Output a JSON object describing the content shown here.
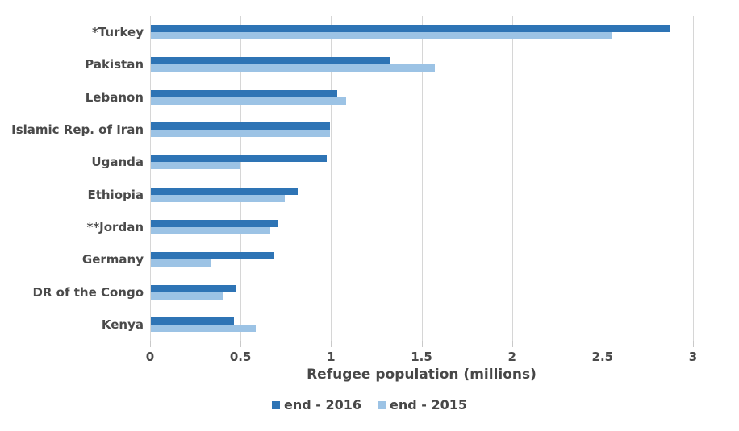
{
  "chart_data": {
    "type": "bar",
    "orientation": "horizontal",
    "title": "",
    "xlabel": "Refugee population (millions)",
    "ylabel": "",
    "xlim": [
      0,
      3
    ],
    "xticks": [
      0,
      0.5,
      1,
      1.5,
      2,
      2.5,
      3
    ],
    "xtick_labels": [
      "0",
      "0.5",
      "1",
      "1.5",
      "2",
      "2.5",
      "3"
    ],
    "grid": "vertical",
    "legend_position": "bottom-center",
    "categories": [
      "*Turkey",
      "Pakistan",
      "Lebanon",
      "Islamic Rep. of Iran",
      "Uganda",
      "Ethiopia",
      "**Jordan",
      "Germany",
      "DR of the Congo",
      "Kenya"
    ],
    "series": [
      {
        "name": "end - 2016",
        "color": "#2E74B5",
        "values": [
          2.87,
          1.32,
          1.03,
          0.99,
          0.97,
          0.81,
          0.7,
          0.68,
          0.47,
          0.46
        ]
      },
      {
        "name": "end - 2015",
        "color": "#9CC3E5",
        "values": [
          2.55,
          1.57,
          1.08,
          0.99,
          0.49,
          0.74,
          0.66,
          0.33,
          0.4,
          0.58
        ]
      }
    ],
    "colors": {
      "gridline": "#D6D6D6",
      "axis_tick": "#C9C9C9",
      "text": "#4A4A4A",
      "background": "#FFFFFF"
    }
  }
}
